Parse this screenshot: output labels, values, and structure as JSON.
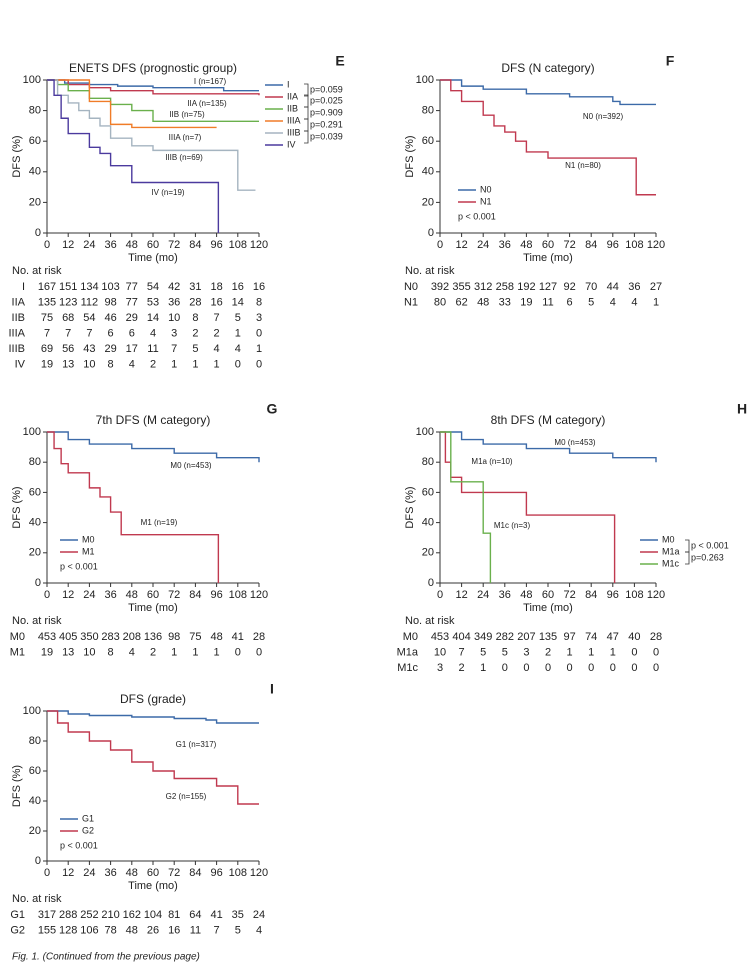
{
  "chart_data": [
    {
      "type": "line",
      "title": "ENETS DFS (prognostic group)",
      "panel_label": "E",
      "xlabel": "Time (mo)",
      "ylabel": "DFS (%)",
      "xlim": [
        0,
        120
      ],
      "ylim": [
        0,
        100
      ],
      "xticks": [
        0,
        12,
        24,
        36,
        48,
        60,
        72,
        84,
        96,
        108,
        120
      ],
      "yticks": [
        0,
        20,
        40,
        60,
        80,
        100
      ],
      "legend": "right",
      "series": [
        {
          "name": "I",
          "color": "#3c6aa8",
          "x": [
            0,
            10,
            24,
            40,
            60,
            100,
            120
          ],
          "values": [
            100,
            98,
            97,
            96,
            95,
            93,
            93
          ]
        },
        {
          "name": "IIA",
          "color": "#c0394f",
          "x": [
            0,
            12,
            24,
            36,
            60,
            120
          ],
          "values": [
            100,
            97,
            95,
            93,
            91,
            90
          ]
        },
        {
          "name": "IIB",
          "color": "#6ab04c",
          "x": [
            0,
            6,
            12,
            24,
            36,
            48,
            60,
            120
          ],
          "values": [
            100,
            97,
            93,
            88,
            84,
            80,
            73,
            73
          ]
        },
        {
          "name": "IIIA",
          "color": "#f07c28",
          "x": [
            0,
            24,
            36,
            48,
            96
          ],
          "values": [
            100,
            86,
            71,
            69,
            69
          ]
        },
        {
          "name": "IIIB",
          "color": "#a5b4c0",
          "x": [
            0,
            6,
            12,
            18,
            24,
            30,
            36,
            48,
            60,
            104,
            108,
            118
          ],
          "values": [
            100,
            90,
            85,
            80,
            75,
            70,
            62,
            57,
            54,
            54,
            28,
            28
          ]
        },
        {
          "name": "IV",
          "color": "#4b3a9e",
          "x": [
            0,
            4,
            8,
            12,
            24,
            30,
            36,
            48,
            96,
            97
          ],
          "values": [
            100,
            90,
            75,
            65,
            56,
            52,
            44,
            33,
            33,
            0
          ]
        }
      ],
      "annotations": [
        "I (n=167)",
        "IIA (n=135)",
        "IIB (n=75)",
        "IIIA (n=7)",
        "IIIB (n=69)",
        "IV (n=19)"
      ],
      "p_values": [
        "p=0.059",
        "p=0.025",
        "p=0.909",
        "p=0.291",
        "p=0.039"
      ],
      "risk_table": {
        "title": "No. at risk",
        "rows": [
          {
            "label": "I",
            "values": [
              167,
              151,
              134,
              103,
              77,
              54,
              42,
              31,
              18,
              16,
              16
            ]
          },
          {
            "label": "IIA",
            "values": [
              135,
              123,
              112,
              98,
              77,
              53,
              36,
              28,
              16,
              14,
              8
            ]
          },
          {
            "label": "IIB",
            "values": [
              75,
              68,
              54,
              46,
              29,
              14,
              10,
              8,
              7,
              5,
              3
            ]
          },
          {
            "label": "IIIA",
            "values": [
              7,
              7,
              7,
              6,
              6,
              4,
              3,
              2,
              2,
              1,
              0
            ]
          },
          {
            "label": "IIIB",
            "values": [
              69,
              56,
              43,
              29,
              17,
              11,
              7,
              5,
              4,
              4,
              1
            ]
          },
          {
            "label": "IV",
            "values": [
              19,
              13,
              10,
              8,
              4,
              2,
              1,
              1,
              1,
              0,
              0
            ]
          }
        ]
      }
    },
    {
      "type": "line",
      "title": "DFS (N category)",
      "panel_label": "F",
      "xlabel": "Time (mo)",
      "ylabel": "DFS (%)",
      "xlim": [
        0,
        120
      ],
      "ylim": [
        0,
        100
      ],
      "xticks": [
        0,
        12,
        24,
        36,
        48,
        60,
        72,
        84,
        96,
        108,
        120
      ],
      "yticks": [
        0,
        20,
        40,
        60,
        80,
        100
      ],
      "legend": "lower left",
      "series": [
        {
          "name": "N0",
          "color": "#3c6aa8",
          "x": [
            0,
            12,
            24,
            48,
            72,
            96,
            100,
            120
          ],
          "values": [
            100,
            96,
            94,
            91,
            89,
            86,
            84,
            84
          ]
        },
        {
          "name": "N1",
          "color": "#c0394f",
          "x": [
            0,
            6,
            12,
            24,
            30,
            36,
            42,
            48,
            60,
            108,
            109,
            120
          ],
          "values": [
            100,
            93,
            86,
            77,
            70,
            66,
            60,
            53,
            49,
            49,
            25,
            25
          ]
        }
      ],
      "annotations": [
        "N0 (n=392)",
        "N1 (n=80)"
      ],
      "p_values": [
        "p < 0.001"
      ],
      "risk_table": {
        "title": "No. at risk",
        "rows": [
          {
            "label": "N0",
            "values": [
              392,
              355,
              312,
              258,
              192,
              127,
              92,
              70,
              44,
              36,
              27
            ]
          },
          {
            "label": "N1",
            "values": [
              80,
              62,
              48,
              33,
              19,
              11,
              6,
              5,
              4,
              4,
              1
            ]
          }
        ]
      }
    },
    {
      "type": "line",
      "title": "7th DFS (M category)",
      "panel_label": "G",
      "xlabel": "Time (mo)",
      "ylabel": "DFS (%)",
      "xlim": [
        0,
        120
      ],
      "ylim": [
        0,
        100
      ],
      "xticks": [
        0,
        12,
        24,
        36,
        48,
        60,
        72,
        84,
        96,
        108,
        120
      ],
      "yticks": [
        0,
        20,
        40,
        60,
        80,
        100
      ],
      "legend": "lower left",
      "series": [
        {
          "name": "M0",
          "color": "#3c6aa8",
          "x": [
            0,
            12,
            24,
            48,
            72,
            96,
            120
          ],
          "values": [
            100,
            95,
            92,
            89,
            86,
            83,
            80
          ]
        },
        {
          "name": "M1",
          "color": "#c0394f",
          "x": [
            0,
            4,
            8,
            12,
            24,
            30,
            36,
            42,
            96,
            97
          ],
          "values": [
            100,
            89,
            79,
            73,
            63,
            57,
            47,
            32,
            32,
            0
          ]
        }
      ],
      "annotations": [
        "M0 (n=453)",
        "M1 (n=19)"
      ],
      "p_values": [
        "p < 0.001"
      ],
      "risk_table": {
        "title": "No. at risk",
        "rows": [
          {
            "label": "M0",
            "values": [
              453,
              405,
              350,
              283,
              208,
              136,
              98,
              75,
              48,
              41,
              28
            ]
          },
          {
            "label": "M1",
            "values": [
              19,
              13,
              10,
              8,
              4,
              2,
              1,
              1,
              1,
              0,
              0
            ]
          }
        ]
      }
    },
    {
      "type": "line",
      "title": "8th DFS (M category)",
      "panel_label": "H",
      "xlabel": "Time (mo)",
      "ylabel": "DFS (%)",
      "xlim": [
        0,
        120
      ],
      "ylim": [
        0,
        100
      ],
      "xticks": [
        0,
        12,
        24,
        36,
        48,
        60,
        72,
        84,
        96,
        108,
        120
      ],
      "yticks": [
        0,
        20,
        40,
        60,
        80,
        100
      ],
      "legend": "right",
      "series": [
        {
          "name": "M0",
          "color": "#3c6aa8",
          "x": [
            0,
            12,
            24,
            48,
            72,
            96,
            120
          ],
          "values": [
            100,
            95,
            92,
            89,
            86,
            83,
            80
          ]
        },
        {
          "name": "M1a",
          "color": "#c0394f",
          "x": [
            0,
            3,
            6,
            12,
            36,
            48,
            96,
            97
          ],
          "values": [
            100,
            80,
            70,
            60,
            60,
            45,
            45,
            0
          ]
        },
        {
          "name": "M1c",
          "color": "#6ab04c",
          "x": [
            0,
            6,
            12,
            24,
            28
          ],
          "values": [
            100,
            67,
            67,
            33,
            0
          ]
        }
      ],
      "annotations": [
        "M0 (n=453)",
        "M1a (n=10)",
        "M1c (n=3)"
      ],
      "p_values": [
        "p < 0.001",
        "p=0.263"
      ],
      "risk_table": {
        "title": "No. at risk",
        "rows": [
          {
            "label": "M0",
            "values": [
              453,
              404,
              349,
              282,
              207,
              135,
              97,
              74,
              47,
              40,
              28
            ]
          },
          {
            "label": "M1a",
            "values": [
              10,
              7,
              5,
              5,
              3,
              2,
              1,
              1,
              1,
              0,
              0
            ]
          },
          {
            "label": "M1c",
            "values": [
              3,
              2,
              1,
              0,
              0,
              0,
              0,
              0,
              0,
              0,
              0
            ]
          }
        ]
      }
    },
    {
      "type": "line",
      "title": "DFS (grade)",
      "panel_label": "I",
      "xlabel": "Time (mo)",
      "ylabel": "DFS (%)",
      "xlim": [
        0,
        120
      ],
      "ylim": [
        0,
        100
      ],
      "xticks": [
        0,
        12,
        24,
        36,
        48,
        60,
        72,
        84,
        96,
        108,
        120
      ],
      "yticks": [
        0,
        20,
        40,
        60,
        80,
        100
      ],
      "legend": "lower left",
      "series": [
        {
          "name": "G1",
          "color": "#3c6aa8",
          "x": [
            0,
            12,
            24,
            48,
            72,
            90,
            96,
            120
          ],
          "values": [
            100,
            98,
            97,
            96,
            95,
            94,
            92,
            92
          ]
        },
        {
          "name": "G2",
          "color": "#c0394f",
          "x": [
            0,
            6,
            12,
            24,
            36,
            48,
            60,
            72,
            96,
            108,
            120
          ],
          "values": [
            100,
            92,
            86,
            80,
            74,
            66,
            60,
            55,
            50,
            38,
            38
          ]
        }
      ],
      "annotations": [
        "G1 (n=317)",
        "G2 (n=155)"
      ],
      "p_values": [
        "p < 0.001"
      ],
      "risk_table": {
        "title": "No. at risk",
        "rows": [
          {
            "label": "G1",
            "values": [
              317,
              288,
              252,
              210,
              162,
              104,
              81,
              64,
              41,
              35,
              24
            ]
          },
          {
            "label": "G2",
            "values": [
              155,
              128,
              106,
              78,
              48,
              26,
              16,
              11,
              7,
              5,
              4
            ]
          }
        ]
      }
    }
  ],
  "caption": "Fig. 1. (Continued from the previous page)"
}
